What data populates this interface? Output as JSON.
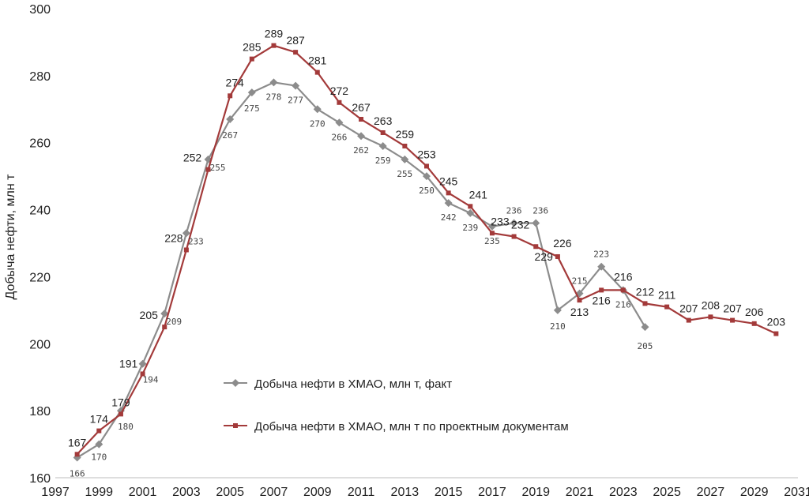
{
  "chart_data": {
    "type": "line",
    "title": "",
    "xlabel": "",
    "ylabel": "Добыча нефти,  млн т",
    "xlim": [
      1997,
      2031
    ],
    "ylim": [
      160,
      300
    ],
    "x_ticks": [
      "1997",
      "1999",
      "2001",
      "2003",
      "2005",
      "2007",
      "2009",
      "2011",
      "2013",
      "2015",
      "2017",
      "2019",
      "2021",
      "2023",
      "2025",
      "2027",
      "2029",
      "2031"
    ],
    "y_ticks": [
      "160",
      "180",
      "200",
      "220",
      "240",
      "260",
      "280",
      "300"
    ],
    "legend_position": "center",
    "grid": false,
    "series": [
      {
        "name": "Добыча нефти в ХМАО, млн т, факт",
        "color": "#8c8c8c",
        "marker": "diamond",
        "x": [
          1998,
          1999,
          2000,
          2001,
          2002,
          2003,
          2004,
          2005,
          2006,
          2007,
          2008,
          2009,
          2010,
          2011,
          2012,
          2013,
          2014,
          2015,
          2016,
          2017,
          2018,
          2019,
          2020,
          2021,
          2022,
          2023,
          2024
        ],
        "values": [
          166,
          170,
          180,
          194,
          209,
          233,
          255,
          267,
          275,
          278,
          277,
          270,
          266,
          262,
          259,
          255,
          250,
          242,
          239,
          235,
          236,
          236,
          210,
          215,
          223,
          216,
          205
        ]
      },
      {
        "name": "Добыча нефти в ХМАО, млн т по проектным документам",
        "color": "#a33a3a",
        "marker": "square",
        "x": [
          1998,
          1999,
          2000,
          2001,
          2002,
          2003,
          2004,
          2005,
          2006,
          2007,
          2008,
          2009,
          2010,
          2011,
          2012,
          2013,
          2014,
          2015,
          2016,
          2017,
          2018,
          2019,
          2020,
          2021,
          2022,
          2023,
          2024,
          2025,
          2026,
          2027,
          2028,
          2029,
          2030
        ],
        "values": [
          167,
          174,
          179,
          191,
          205,
          228,
          252,
          274,
          285,
          289,
          287,
          281,
          272,
          267,
          263,
          259,
          253,
          245,
          241,
          233,
          232,
          229,
          226,
          213,
          216,
          216,
          212,
          211,
          207,
          208,
          207,
          206,
          203
        ]
      }
    ]
  }
}
